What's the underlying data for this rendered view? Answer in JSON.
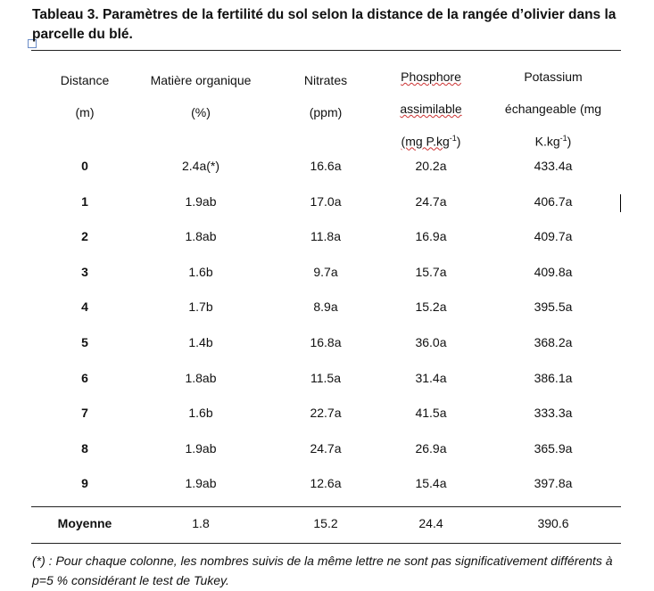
{
  "title": "Tableau 3. Paramètres de la fertilité du sol selon la distance de la rangée d’olivier dans la parcelle du blé.",
  "table": {
    "header": [
      {
        "lines": [
          "Distance",
          "(m)"
        ]
      },
      {
        "lines": [
          "Matière organique",
          "(%)"
        ]
      },
      {
        "lines": [
          "Nitrates",
          "(ppm)"
        ]
      },
      {
        "lines": [
          "Phosphore",
          "assimilable"
        ],
        "unit": {
          "text": "(mg P.kg",
          "sup": "-1",
          "after": ")"
        }
      },
      {
        "lines": [
          "Potassium",
          "échangeable (mg"
        ],
        "unit": {
          "text": "K.kg",
          "sup": "-1",
          "after": ")"
        }
      }
    ],
    "rows": [
      [
        "0",
        "2.4a(*)",
        "16.6a",
        "20.2a",
        "433.4a"
      ],
      [
        "1",
        "1.9ab",
        "17.0a",
        "24.7a",
        "406.7a"
      ],
      [
        "2",
        "1.8ab",
        "11.8a",
        "16.9a",
        "409.7a"
      ],
      [
        "3",
        "1.6b",
        "9.7a",
        "15.7a",
        "409.8a"
      ],
      [
        "4",
        "1.7b",
        "8.9a",
        "15.2a",
        "395.5a"
      ],
      [
        "5",
        "1.4b",
        "16.8a",
        "36.0a",
        "368.2a"
      ],
      [
        "6",
        "1.8ab",
        "11.5a",
        "31.4a",
        "386.1a"
      ],
      [
        "7",
        "1.6b",
        "22.7a",
        "41.5a",
        "333.3a"
      ],
      [
        "8",
        "1.9ab",
        "24.7a",
        "26.9a",
        "365.9a"
      ],
      [
        "9",
        "1.9ab",
        "12.6a",
        "15.4a",
        "397.8a"
      ]
    ],
    "mean": [
      "Moyenne",
      "1.8",
      "15.2",
      "24.4",
      "390.6"
    ]
  },
  "footnote": "(*) : Pour chaque colonne, les nombres suivis de la même lettre ne sont pas significativement différents à p=5 % considérant le test de Tukey."
}
